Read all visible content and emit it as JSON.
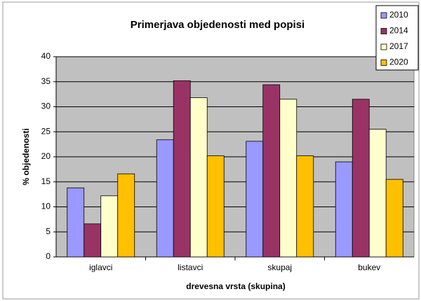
{
  "chart_data": {
    "type": "bar",
    "title": "Primerjava objedenosti med popisi",
    "xlabel": "drevesna vrsta (skupina)",
    "ylabel": "% objedenosti",
    "categories": [
      "iglavci",
      "listavci",
      "skupaj",
      "bukev"
    ],
    "series": [
      {
        "name": "2010",
        "color": "#9999ff",
        "values": [
          13.8,
          23.4,
          23.1,
          19.0
        ]
      },
      {
        "name": "2014",
        "color": "#993366",
        "values": [
          6.6,
          35.2,
          34.4,
          31.5
        ]
      },
      {
        "name": "2017",
        "color": "#ffffcc",
        "values": [
          12.2,
          31.8,
          31.5,
          25.5
        ]
      },
      {
        "name": "2020",
        "color": "#ffc000",
        "values": [
          16.6,
          20.2,
          20.2,
          15.5
        ]
      }
    ],
    "ylim": [
      0,
      40
    ],
    "yticks": [
      0,
      5,
      10,
      15,
      20,
      25,
      30,
      35,
      40
    ],
    "grid": true,
    "legend": "top-right"
  }
}
